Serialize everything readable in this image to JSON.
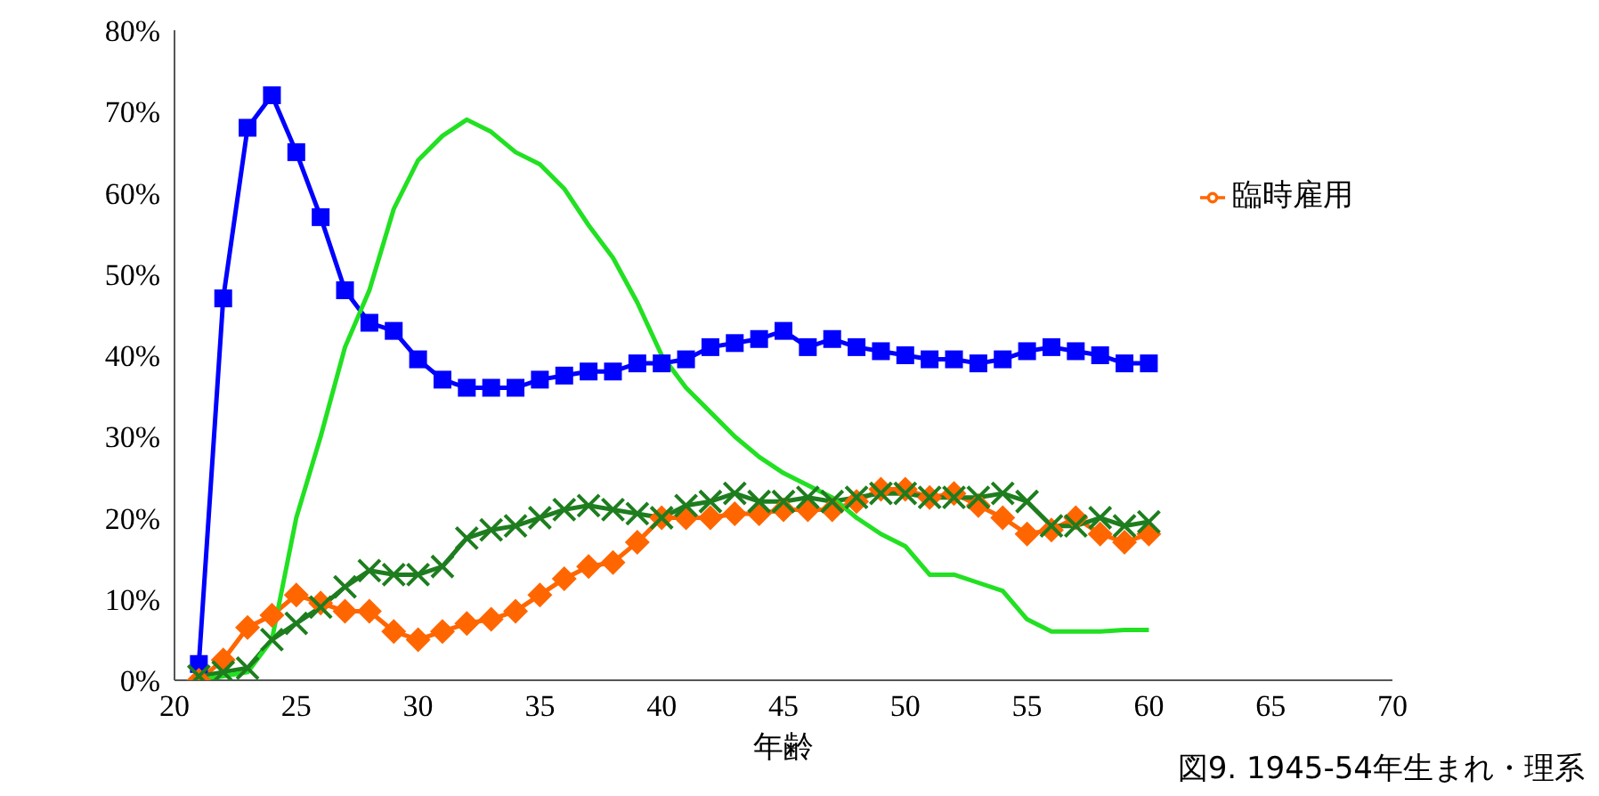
{
  "chart_data": {
    "type": "line",
    "xlabel": "年齢",
    "annotations": [
      "図9. 1945-54年生まれ・理系"
    ],
    "x": [
      21,
      22,
      23,
      24,
      25,
      26,
      27,
      28,
      29,
      30,
      31,
      32,
      33,
      34,
      35,
      36,
      37,
      38,
      39,
      40,
      41,
      42,
      43,
      44,
      45,
      46,
      47,
      48,
      49,
      50,
      51,
      52,
      53,
      54,
      55,
      56,
      57,
      58,
      59,
      60
    ],
    "xlim": [
      20,
      70
    ],
    "xticks": [
      20,
      25,
      30,
      35,
      40,
      45,
      50,
      55,
      60,
      65,
      70
    ],
    "ylim": [
      0,
      80
    ],
    "yticks": [
      {
        "value": 0,
        "label": "0%"
      },
      {
        "value": 10,
        "label": "10%"
      },
      {
        "value": 20,
        "label": "20%"
      },
      {
        "value": 30,
        "label": "30%"
      },
      {
        "value": 40,
        "label": "40%"
      },
      {
        "value": 50,
        "label": "50%"
      },
      {
        "value": 60,
        "label": "60%"
      },
      {
        "value": 70,
        "label": "70%"
      },
      {
        "value": 80,
        "label": "80%"
      }
    ],
    "legend": "right",
    "grid": false,
    "series": [
      {
        "color": "#0000ff",
        "marker": "square",
        "values": [
          2,
          47,
          68,
          72,
          65,
          57,
          48,
          44,
          43,
          39.5,
          37,
          36,
          36,
          36,
          37,
          37.5,
          38,
          38,
          39,
          39,
          39.5,
          41,
          41.5,
          42,
          43,
          41,
          42,
          41,
          40.5,
          40,
          39.5,
          39.5,
          39,
          39.5,
          40.5,
          41,
          40.5,
          40,
          39,
          39
        ]
      },
      {
        "name": "臨時雇用",
        "color": "#ff6600",
        "marker": "diamond",
        "values": [
          0,
          2.5,
          6.5,
          8,
          10.5,
          9.5,
          8.5,
          8.5,
          6,
          5,
          6,
          7,
          7.5,
          8.5,
          10.5,
          12.5,
          14,
          14.5,
          17,
          20,
          20,
          20,
          20.5,
          20.5,
          21,
          21,
          21,
          22,
          23.5,
          23.5,
          22.5,
          23,
          21.5,
          20,
          18,
          18.5,
          20,
          18,
          17,
          18
        ]
      },
      {
        "color": "#1e7d1e",
        "marker": "cross",
        "values": [
          0.5,
          1,
          1.5,
          5,
          7,
          9,
          11.5,
          13.5,
          13,
          13,
          14,
          17.5,
          18.5,
          19,
          20,
          21,
          21.5,
          21,
          20.5,
          20,
          21.5,
          22,
          23,
          22,
          22,
          22.5,
          22,
          22.5,
          23,
          23,
          22.5,
          22.5,
          22.5,
          23,
          22,
          19,
          19,
          20,
          19,
          19.5
        ]
      },
      {
        "color": "#22e022",
        "marker": "none",
        "values": [
          0,
          0.5,
          1,
          5,
          20,
          30,
          41,
          48,
          58,
          64,
          67,
          69,
          67.5,
          65,
          63.5,
          60.5,
          56,
          52,
          46.5,
          40,
          36,
          33,
          30,
          27.5,
          25.5,
          24,
          22.5,
          20,
          18,
          16.5,
          13,
          13,
          12,
          11,
          7.5,
          6,
          6,
          6,
          6.2,
          6.2
        ]
      }
    ]
  }
}
